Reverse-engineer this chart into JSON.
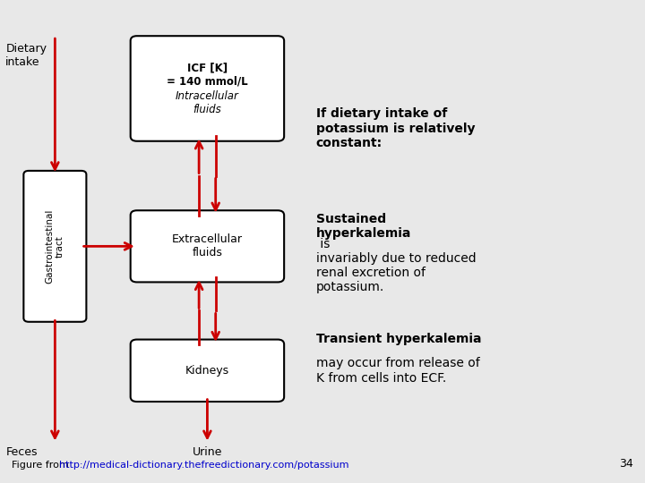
{
  "bg_color": "#e8e8e8",
  "arrow_color": "#cc0000",
  "box_border_color": "#000000",
  "box_fill_color": "#ffffff",
  "text_color": "#000000",
  "title_text": "ICF [K]\n= 140 mmol/L",
  "box1_label": "Intracellular\nfluids",
  "box2_label": "Extracellular\nfluids",
  "box3_label": "Kidneys",
  "left_label_top": "Dietary\nintake",
  "left_label_bottom": "Feces",
  "bottom_label": "Urine",
  "gi_label": "Gastrointestinal\ntract",
  "right_text_1": "If dietary intake of\npotassium is relatively\nconstant:",
  "right_text_2_bold": "Sustained\nhyperkalemia",
  "right_text_2_normal": " is\ninvariably due to reduced\nrenal excretion of\npotassium.",
  "right_text_3_bold": "Transient hyperkalemia",
  "right_text_3_normal": "may occur from release of\nK from cells into ECF.",
  "footer_text": "Figure from ",
  "footer_link": "http://medical-dictionary.thefreedictionary.com/potassium",
  "page_number": "34",
  "link_color": "#0000cc"
}
